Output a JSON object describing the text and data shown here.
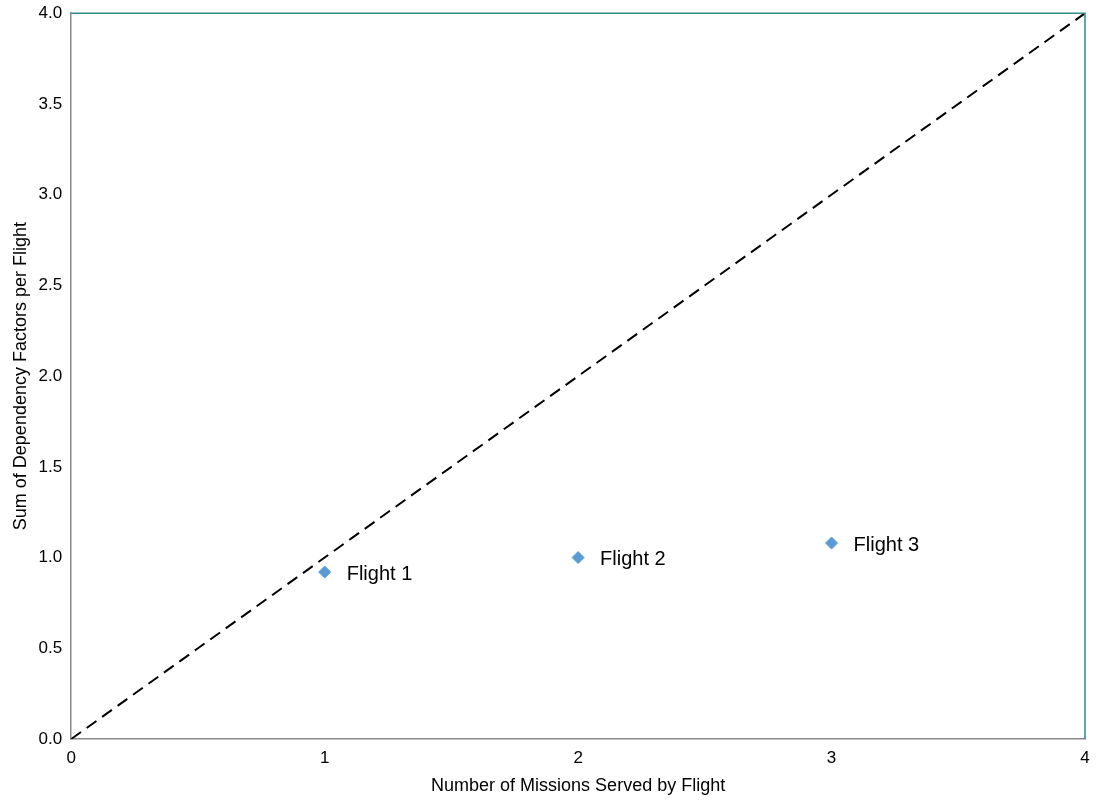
{
  "chart_data": {
    "type": "scatter",
    "xlabel": "Number of Missions Served by Flight",
    "ylabel": "Sum of Dependency Factors per Flight",
    "xlim": [
      0,
      4
    ],
    "ylim": [
      0,
      4
    ],
    "xticks": [
      0,
      1,
      2,
      3,
      4
    ],
    "yticks": [
      {
        "value": 0,
        "label": "0.0"
      },
      {
        "value": 0.5,
        "label": "0.5"
      },
      {
        "value": 1,
        "label": "1.0"
      },
      {
        "value": 1.5,
        "label": "1.5"
      },
      {
        "value": 2,
        "label": "2.0"
      },
      {
        "value": 2.5,
        "label": "2.5"
      },
      {
        "value": 3,
        "label": "3.0"
      },
      {
        "value": 3.5,
        "label": "3.5"
      },
      {
        "value": 4,
        "label": "4.0"
      }
    ],
    "series": [
      {
        "type": "scatter",
        "color": "#5b9bd5",
        "marker": "diamond",
        "x": [
          1,
          2,
          3
        ],
        "values": [
          0.92,
          1.0,
          1.08
        ]
      },
      {
        "type": "line",
        "color": "#000000",
        "marker": "none",
        "line_style": "dashed",
        "x": [
          0,
          4
        ],
        "values": [
          0,
          4
        ]
      }
    ],
    "annotations": [
      {
        "text": "Flight 1",
        "x": 1,
        "y": 0.92
      },
      {
        "text": "Flight 2",
        "x": 2,
        "y": 1.0
      },
      {
        "text": "Flight 3",
        "x": 3,
        "y": 1.08
      }
    ]
  }
}
